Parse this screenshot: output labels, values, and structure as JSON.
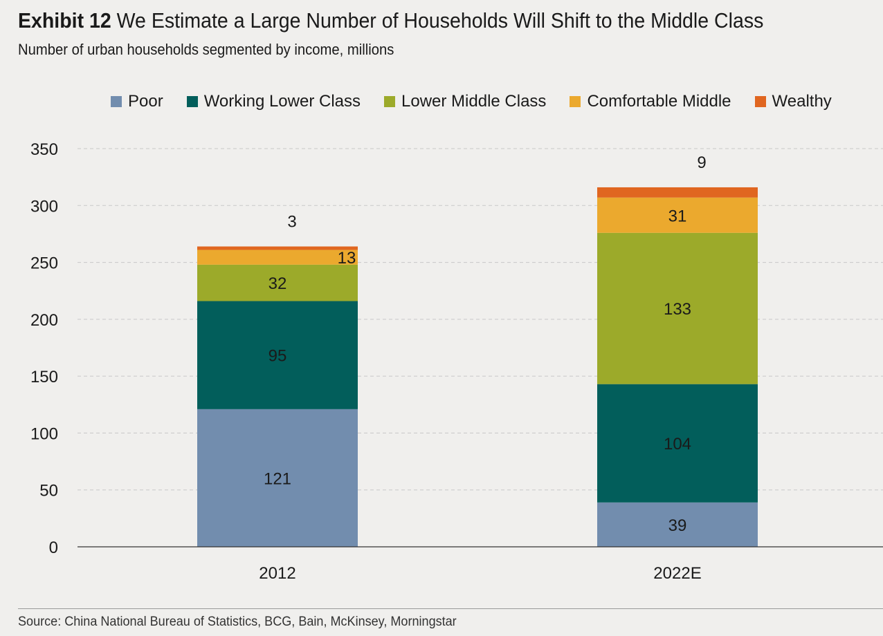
{
  "header": {
    "exhibit_label": "Exhibit 12",
    "title": "We Estimate a Large Number of Households Will Shift to the Middle Class",
    "subtitle": "Number of urban households segmented by income, millions"
  },
  "footer": {
    "source": "Source: China National Bureau of Statistics, BCG, Bain, McKinsey, Morningstar"
  },
  "chart_data": {
    "type": "bar",
    "stacked": true,
    "categories": [
      "2012",
      "2022E"
    ],
    "series": [
      {
        "name": "Poor",
        "values": [
          121,
          39
        ],
        "color": "#728dae"
      },
      {
        "name": "Working Lower Class",
        "values": [
          95,
          104
        ],
        "color": "#025e5b"
      },
      {
        "name": "Lower Middle Class",
        "values": [
          32,
          133
        ],
        "color": "#9caa2a"
      },
      {
        "name": "Comfortable Middle",
        "values": [
          13,
          31
        ],
        "color": "#eba92e"
      },
      {
        "name": "Wealthy",
        "values": [
          3,
          9
        ],
        "color": "#e06620"
      }
    ],
    "ylim": [
      0,
      350
    ],
    "yticks": [
      "0",
      "50",
      "100",
      "150",
      "200",
      "250",
      "300",
      "350"
    ],
    "grid": true,
    "legend_position": "top"
  }
}
